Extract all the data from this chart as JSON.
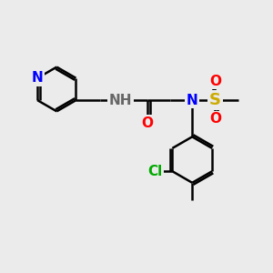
{
  "bg_color": "#ebebeb",
  "bond_color": "#000000",
  "bond_lw": 1.8,
  "atom_colors": {
    "N": "#0000ff",
    "O": "#ff0000",
    "S": "#ccaa00",
    "Cl": "#00aa00",
    "C": "#000000",
    "H": "#666666"
  },
  "font_size_atom": 11,
  "font_size_small": 9
}
